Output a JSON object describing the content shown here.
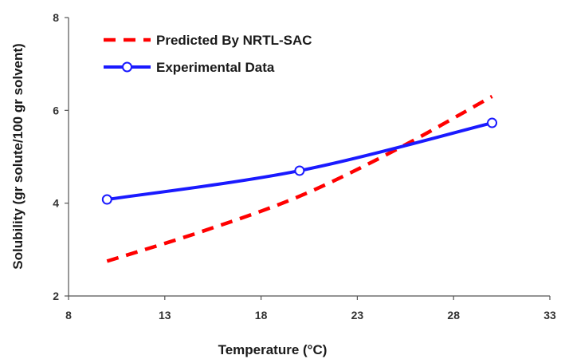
{
  "chart_data": {
    "type": "line",
    "xlabel": "Temperature (°C)",
    "ylabel": "Solubility (gr solute/100 gr solvent)",
    "xlim": [
      8,
      33
    ],
    "ylim": [
      2,
      8
    ],
    "x_ticks": [
      "8",
      "13",
      "18",
      "23",
      "28",
      "33"
    ],
    "y_ticks": [
      "2",
      "4",
      "6",
      "8"
    ],
    "grid": false,
    "legend_position": "top-left",
    "series": [
      {
        "name": "Predicted By NRTL-SAC",
        "style": "dashed",
        "color": "#ff0000",
        "x": [
          10,
          15,
          20,
          25,
          30
        ],
        "y": [
          2.75,
          3.4,
          4.15,
          5.15,
          6.3
        ]
      },
      {
        "name": "Experimental Data",
        "style": "solid-markers",
        "color": "#1a1aff",
        "x": [
          10,
          20,
          30
        ],
        "y": [
          4.08,
          4.7,
          5.73
        ]
      }
    ]
  }
}
